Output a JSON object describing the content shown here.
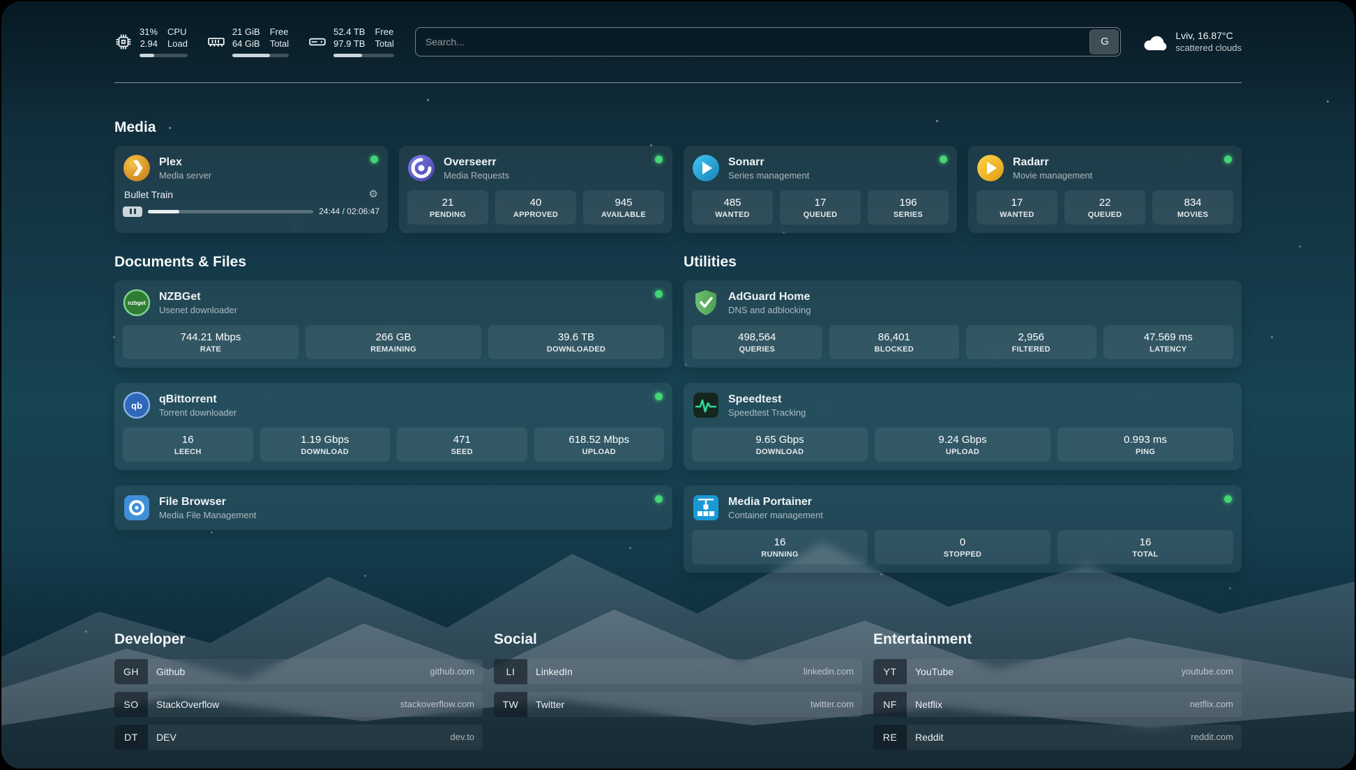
{
  "colors": {
    "status_online": "#43d675",
    "progress_fill": "#ccd6dc",
    "plex_amber": "#e5a00d",
    "sonarr_blue": "#35c5f4",
    "radarr_yellow": "#ffc230",
    "adguard_green": "#68bc71",
    "portainer_blue": "#1899d6",
    "speedtest_green": "#2fd8a0"
  },
  "topbar": {
    "cpu": {
      "stat1_top": "31%",
      "stat1_bottom": "2.94",
      "stat2_top": "CPU",
      "stat2_bottom": "Load",
      "progress": 31
    },
    "memory": {
      "stat1_top": "21 GiB",
      "stat1_bottom": "64 GiB",
      "stat2_top": "Free",
      "stat2_bottom": "Total",
      "progress": 66
    },
    "disk": {
      "stat1_top": "52.4 TB",
      "stat1_bottom": "97.9 TB",
      "stat2_top": "Free",
      "stat2_bottom": "Total",
      "progress": 47
    },
    "search": {
      "placeholder": "Search...",
      "provider_label": "G"
    },
    "weather": {
      "location": "Lviv, 16.87°C",
      "condition": "scattered clouds"
    }
  },
  "sections": {
    "media": {
      "title": "Media"
    },
    "documents": {
      "title": "Documents & Files"
    },
    "utilities": {
      "title": "Utilities"
    }
  },
  "services": {
    "plex": {
      "name": "Plex",
      "desc": "Media server",
      "now_playing": "Bullet Train",
      "time": "24:44 / 02:06:47",
      "progress": 19
    },
    "overseerr": {
      "name": "Overseerr",
      "desc": "Media Requests",
      "stats": [
        {
          "value": "21",
          "label": "PENDING"
        },
        {
          "value": "40",
          "label": "APPROVED"
        },
        {
          "value": "945",
          "label": "AVAILABLE"
        }
      ]
    },
    "sonarr": {
      "name": "Sonarr",
      "desc": "Series management",
      "stats": [
        {
          "value": "485",
          "label": "WANTED"
        },
        {
          "value": "17",
          "label": "QUEUED"
        },
        {
          "value": "196",
          "label": "SERIES"
        }
      ]
    },
    "radarr": {
      "name": "Radarr",
      "desc": "Movie management",
      "stats": [
        {
          "value": "17",
          "label": "WANTED"
        },
        {
          "value": "22",
          "label": "QUEUED"
        },
        {
          "value": "834",
          "label": "MOVIES"
        }
      ]
    },
    "nzbget": {
      "name": "NZBGet",
      "desc": "Usenet downloader",
      "icon_text": "nzbget",
      "stats": [
        {
          "value": "744.21 Mbps",
          "label": "RATE"
        },
        {
          "value": "266 GB",
          "label": "REMAINING"
        },
        {
          "value": "39.6 TB",
          "label": "DOWNLOADED"
        }
      ]
    },
    "qbittorrent": {
      "name": "qBittorrent",
      "desc": "Torrent downloader",
      "icon_text": "qb",
      "stats": [
        {
          "value": "16",
          "label": "LEECH"
        },
        {
          "value": "1.19 Gbps",
          "label": "DOWNLOAD"
        },
        {
          "value": "471",
          "label": "SEED"
        },
        {
          "value": "618.52 Mbps",
          "label": "UPLOAD"
        }
      ]
    },
    "filebrowser": {
      "name": "File Browser",
      "desc": "Media File Management"
    },
    "adguard": {
      "name": "AdGuard Home",
      "desc": "DNS and adblocking",
      "stats": [
        {
          "value": "498,564",
          "label": "QUERIES"
        },
        {
          "value": "86,401",
          "label": "BLOCKED"
        },
        {
          "value": "2,956",
          "label": "FILTERED"
        },
        {
          "value": "47.569 ms",
          "label": "LATENCY"
        }
      ]
    },
    "speedtest": {
      "name": "Speedtest",
      "desc": "Speedtest Tracking",
      "stats": [
        {
          "value": "9.65 Gbps",
          "label": "DOWNLOAD"
        },
        {
          "value": "9.24 Gbps",
          "label": "UPLOAD"
        },
        {
          "value": "0.993 ms",
          "label": "PING"
        }
      ]
    },
    "portainer": {
      "name": "Media Portainer",
      "desc": "Container management",
      "stats": [
        {
          "value": "16",
          "label": "RUNNING"
        },
        {
          "value": "0",
          "label": "STOPPED"
        },
        {
          "value": "16",
          "label": "TOTAL"
        }
      ]
    }
  },
  "bookmarks": {
    "developer": {
      "title": "Developer",
      "items": [
        {
          "abbr": "GH",
          "name": "Github",
          "url": "github.com"
        },
        {
          "abbr": "SO",
          "name": "StackOverflow",
          "url": "stackoverflow.com"
        },
        {
          "abbr": "DT",
          "name": "DEV",
          "url": "dev.to"
        }
      ]
    },
    "social": {
      "title": "Social",
      "items": [
        {
          "abbr": "LI",
          "name": "LinkedIn",
          "url": "linkedin.com"
        },
        {
          "abbr": "TW",
          "name": "Twitter",
          "url": "twitter.com"
        }
      ]
    },
    "entertainment": {
      "title": "Entertainment",
      "items": [
        {
          "abbr": "YT",
          "name": "YouTube",
          "url": "youtube.com"
        },
        {
          "abbr": "NF",
          "name": "Netflix",
          "url": "netflix.com"
        },
        {
          "abbr": "RE",
          "name": "Reddit",
          "url": "reddit.com"
        }
      ]
    }
  }
}
